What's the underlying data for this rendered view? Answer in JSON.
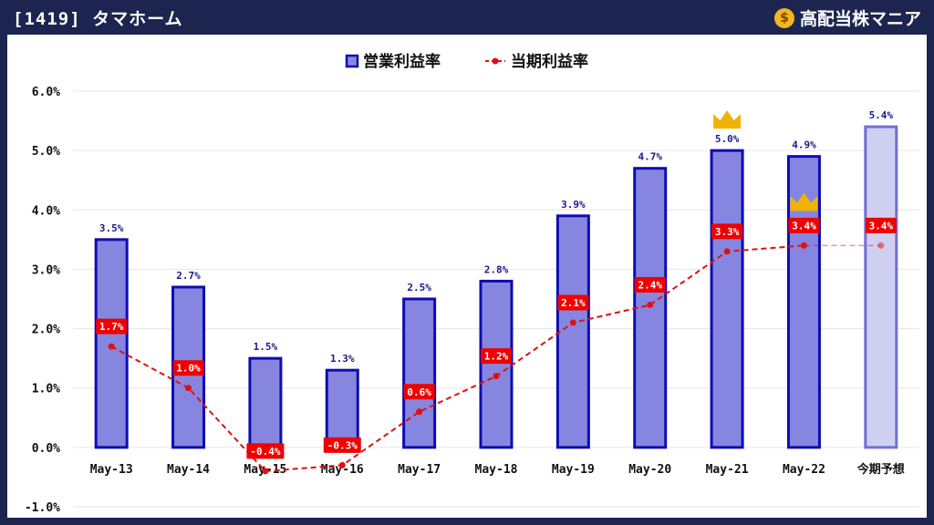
{
  "header": {
    "title": "[1419] タマホーム",
    "brand": "高配当株マニア",
    "brand_icon": "money-bag-icon"
  },
  "colors": {
    "background": "#1b2550",
    "bar_fill": "#8686e0",
    "bar_stroke": "#0d0db0",
    "forecast_fill": "#cfcff2",
    "forecast_stroke": "#7070d8",
    "line": "#e01010",
    "crown": "#f0b400"
  },
  "chart_data": {
    "type": "bar",
    "categories": [
      "May-13",
      "May-14",
      "May-15",
      "May-16",
      "May-17",
      "May-18",
      "May-19",
      "May-20",
      "May-21",
      "May-22",
      "今期予想"
    ],
    "series": [
      {
        "name": "営業利益率",
        "kind": "bar",
        "values": [
          3.5,
          2.7,
          1.5,
          1.3,
          2.5,
          2.8,
          3.9,
          4.7,
          5.0,
          4.9,
          5.4
        ],
        "labels": [
          "3.5%",
          "2.7%",
          "1.5%",
          "1.3%",
          "2.5%",
          "2.8%",
          "3.9%",
          "4.7%",
          "5.0%",
          "4.9%",
          "5.4%"
        ]
      },
      {
        "name": "当期利益率",
        "kind": "line",
        "values": [
          1.7,
          1.0,
          -0.4,
          -0.3,
          0.6,
          1.2,
          2.1,
          2.4,
          3.3,
          3.4,
          3.4
        ],
        "labels": [
          "1.7%",
          "1.0%",
          "-0.4%",
          "-0.3%",
          "0.6%",
          "1.2%",
          "2.1%",
          "2.4%",
          "3.3%",
          "3.4%",
          "3.4%"
        ]
      }
    ],
    "forecast_index": 10,
    "crowns": [
      {
        "series": 0,
        "index": 8
      },
      {
        "series": 1,
        "index": 9
      }
    ],
    "ylim": [
      -1.0,
      6.0
    ],
    "yticks": [
      6.0,
      5.0,
      4.0,
      3.0,
      2.0,
      1.0,
      0.0,
      -1.0
    ],
    "ytick_labels": [
      "6.0%",
      "5.0%",
      "4.0%",
      "3.0%",
      "2.0%",
      "1.0%",
      "0.0%",
      "-1.0%"
    ],
    "grid": true,
    "legend": "top-center"
  }
}
